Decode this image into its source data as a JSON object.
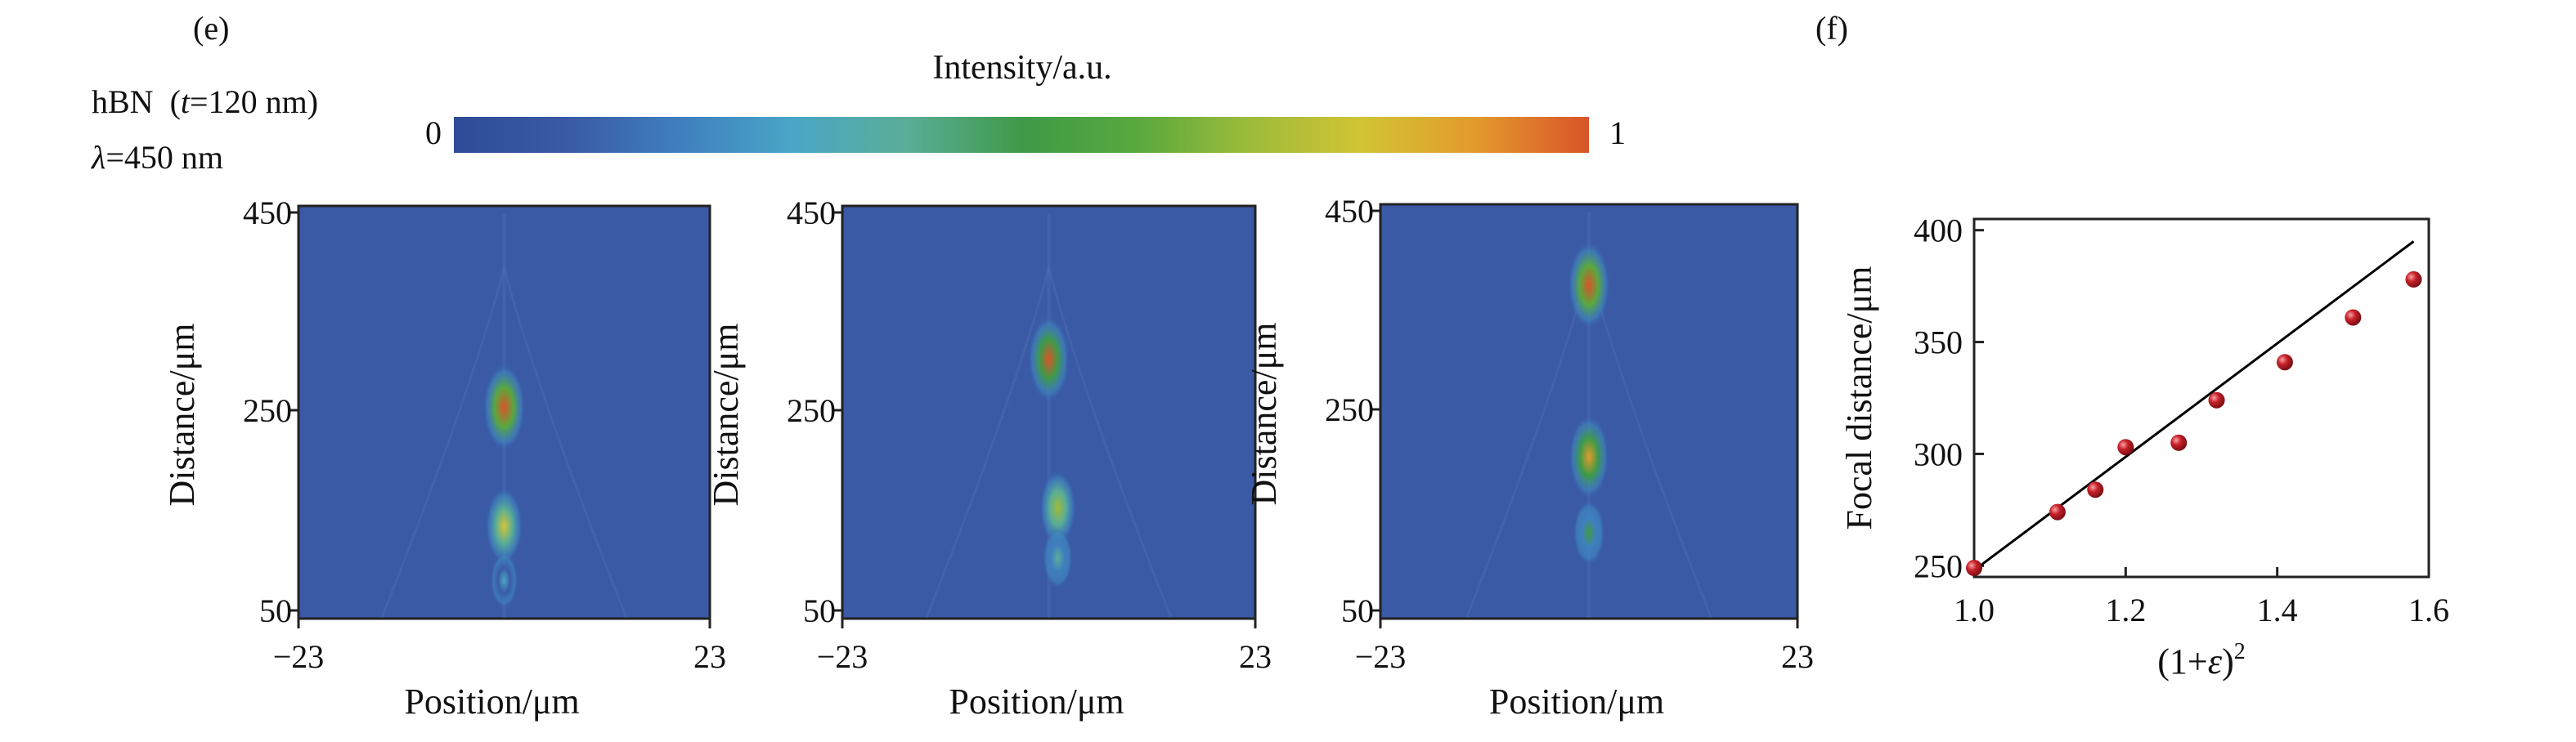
{
  "panels": {
    "e_label": "(e)",
    "f_label": "(f)"
  },
  "sample": {
    "material": "hBN",
    "thickness_prefix": "(",
    "thickness_var": "t",
    "thickness_value": "=120 nm)",
    "wavelength_var": "λ",
    "wavelength_value": "=450 nm"
  },
  "colorbar": {
    "title": "Intensity/a.u.",
    "min_label": "0",
    "max_label": "1",
    "stops": [
      "#2e4c96",
      "#3a5aa6",
      "#3f7fbf",
      "#4aa6c6",
      "#5aad96",
      "#3e9a48",
      "#58a83e",
      "#9cbb3a",
      "#d2c435",
      "#e39a2c",
      "#d9542a"
    ]
  },
  "chart_data": [
    {
      "type": "heatmap",
      "xlabel": "Position/μm",
      "ylabel": "Distance/μm",
      "xlim": [
        -23,
        23
      ],
      "ylim": [
        40,
        450
      ],
      "x_ticks": [
        "−23",
        "23"
      ],
      "y_ticks": [
        "450",
        "250",
        "50"
      ],
      "hotspots": [
        {
          "x": 0,
          "y": 250,
          "intensity": 1.0
        },
        {
          "x": 0,
          "y": 132,
          "intensity": 0.75
        },
        {
          "x": 0,
          "y": 78,
          "intensity": 0.25
        }
      ]
    },
    {
      "type": "heatmap",
      "xlabel": "Position/μm",
      "ylabel": "Distance/μm",
      "xlim": [
        -23,
        23
      ],
      "ylim": [
        40,
        450
      ],
      "x_ticks": [
        "−23",
        "23"
      ],
      "y_ticks": [
        "450",
        "250",
        "50"
      ],
      "hotspots": [
        {
          "x": 0,
          "y": 298,
          "intensity": 0.95
        },
        {
          "x": 1,
          "y": 150,
          "intensity": 0.7
        },
        {
          "x": 1,
          "y": 100,
          "intensity": 0.35
        }
      ]
    },
    {
      "type": "heatmap",
      "xlabel": "Position/μm",
      "ylabel": "Distance/μm",
      "xlim": [
        -23,
        23
      ],
      "ylim": [
        40,
        450
      ],
      "x_ticks": [
        "−23",
        "23"
      ],
      "y_ticks": [
        "450",
        "250",
        "50"
      ],
      "hotspots": [
        {
          "x": 0,
          "y": 370,
          "intensity": 1.0
        },
        {
          "x": 0,
          "y": 200,
          "intensity": 0.9
        },
        {
          "x": 0,
          "y": 125,
          "intensity": 0.45
        }
      ]
    },
    {
      "type": "scatter",
      "xlabel_text": "(1+",
      "xlabel_var": "ε",
      "xlabel_tail": ")",
      "xlabel_sup": "2",
      "ylabel": "Focal distance/μm",
      "xlim": [
        1.0,
        1.6
      ],
      "ylim": [
        245,
        405
      ],
      "x_ticks": [
        1.0,
        1.2,
        1.4,
        1.6
      ],
      "x_tick_labels": [
        "1.0",
        "1.2",
        "1.4",
        "1.6"
      ],
      "y_ticks": [
        250,
        300,
        350,
        400
      ],
      "y_tick_labels": [
        "250",
        "300",
        "350",
        "400"
      ],
      "points": [
        {
          "x": 1.0,
          "y": 249
        },
        {
          "x": 1.11,
          "y": 274
        },
        {
          "x": 1.16,
          "y": 284
        },
        {
          "x": 1.2,
          "y": 303
        },
        {
          "x": 1.27,
          "y": 305
        },
        {
          "x": 1.32,
          "y": 324
        },
        {
          "x": 1.41,
          "y": 341
        },
        {
          "x": 1.5,
          "y": 361
        },
        {
          "x": 1.58,
          "y": 378
        }
      ],
      "fit_line": [
        {
          "x": 1.0,
          "y": 248
        },
        {
          "x": 1.58,
          "y": 395
        }
      ],
      "point_color": "#c8202a",
      "line_color": "#000000"
    }
  ]
}
